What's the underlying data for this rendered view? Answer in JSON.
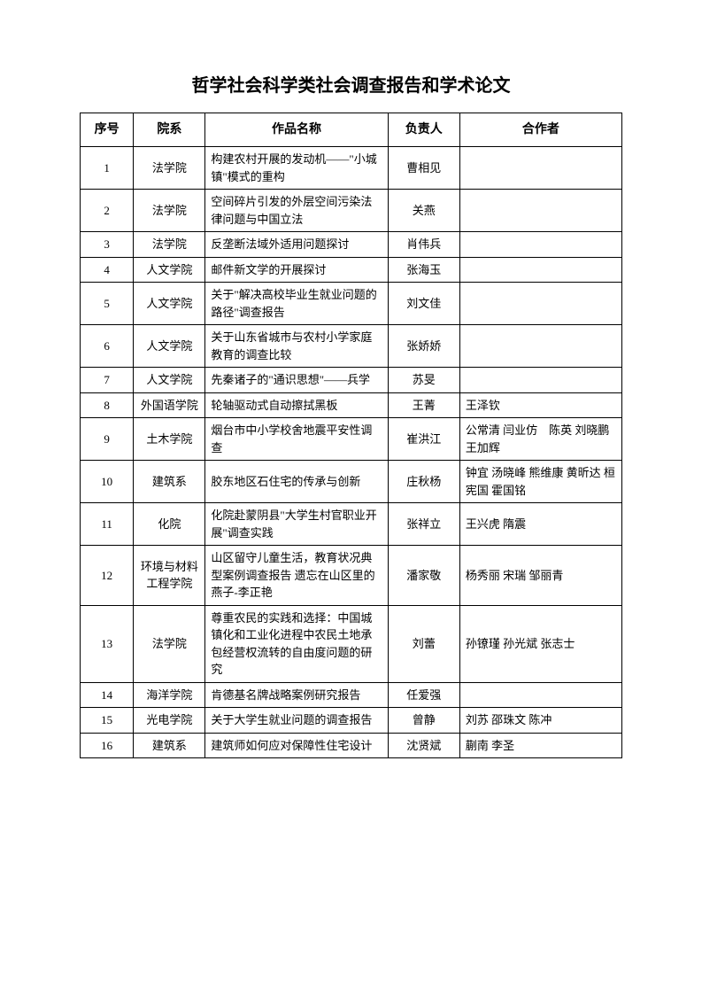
{
  "title": "哲学社会科学类社会调查报告和学术论文",
  "table": {
    "headers": {
      "index": "序号",
      "department": "院系",
      "workname": "作品名称",
      "leader": "负责人",
      "collaborators": "合作者"
    },
    "rows": [
      {
        "index": "1",
        "department": "法学院",
        "workname": "构建农村开展的发动机——\"小城镇\"模式的重构",
        "leader": "曹相见",
        "collaborators": ""
      },
      {
        "index": "2",
        "department": "法学院",
        "workname": "空间碎片引发的外层空间污染法律问题与中国立法",
        "leader": "关燕",
        "collaborators": ""
      },
      {
        "index": "3",
        "department": "法学院",
        "workname": "反垄断法域外适用问题探讨",
        "leader": "肖伟兵",
        "collaborators": ""
      },
      {
        "index": "4",
        "department": "人文学院",
        "workname": "邮件新文学的开展探讨",
        "leader": "张海玉",
        "collaborators": ""
      },
      {
        "index": "5",
        "department": "人文学院",
        "workname": "关于\"解决高校毕业生就业问题的路径\"调查报告",
        "leader": "刘文佳",
        "collaborators": ""
      },
      {
        "index": "6",
        "department": "人文学院",
        "workname": "关于山东省城市与农村小学家庭教育的调查比较",
        "leader": "张娇娇",
        "collaborators": ""
      },
      {
        "index": "7",
        "department": "人文学院",
        "workname": "先秦诸子的\"通识思想\"——兵学",
        "leader": "苏旻",
        "collaborators": ""
      },
      {
        "index": "8",
        "department": "外国语学院",
        "workname": "轮轴驱动式自动擦拭黑板",
        "leader": "王菁",
        "collaborators": "王泽钦"
      },
      {
        "index": "9",
        "department": "土木学院",
        "workname": "烟台市中小学校舍地震平安性调查",
        "leader": "崔洪江",
        "collaborators": "公常清 闫业仿　陈英 刘晓鹏 王加辉"
      },
      {
        "index": "10",
        "department": "建筑系",
        "workname": "胶东地区石住宅的传承与创新",
        "leader": "庄秋杨",
        "collaborators": "钟宜 汤晓峰 熊维康 黄昕达 桓宪国 霍国铭"
      },
      {
        "index": "11",
        "department": "化院",
        "workname": "化院赴蒙阴县\"大学生村官职业开展\"调查实践",
        "leader": "张祥立",
        "collaborators": "王兴虎 隋震"
      },
      {
        "index": "12",
        "department": "环境与材料工程学院",
        "workname": "山区留守儿童生活，教育状况典型案例调查报告 遗忘在山区里的燕子-李正艳",
        "leader": "潘家敬",
        "collaborators": "杨秀丽 宋瑞 邹丽青"
      },
      {
        "index": "13",
        "department": "法学院",
        "workname": "尊重农民的实践和选择：中国城镇化和工业化进程中农民土地承包经营权流转的自由度问题的研究",
        "leader": "刘蕾",
        "collaborators": "孙镣瑾 孙光斌 张志士"
      },
      {
        "index": "14",
        "department": "海洋学院",
        "workname": "肯德基名牌战略案例研究报告",
        "leader": "任爱强",
        "collaborators": ""
      },
      {
        "index": "15",
        "department": "光电学院",
        "workname": "关于大学生就业问题的调查报告",
        "leader": "曾静",
        "collaborators": "刘苏 邵珠文 陈冲"
      },
      {
        "index": "16",
        "department": "建筑系",
        "workname": "建筑师如何应对保障性住宅设计",
        "leader": "沈贤斌",
        "collaborators": "蒯南 李圣"
      }
    ]
  }
}
